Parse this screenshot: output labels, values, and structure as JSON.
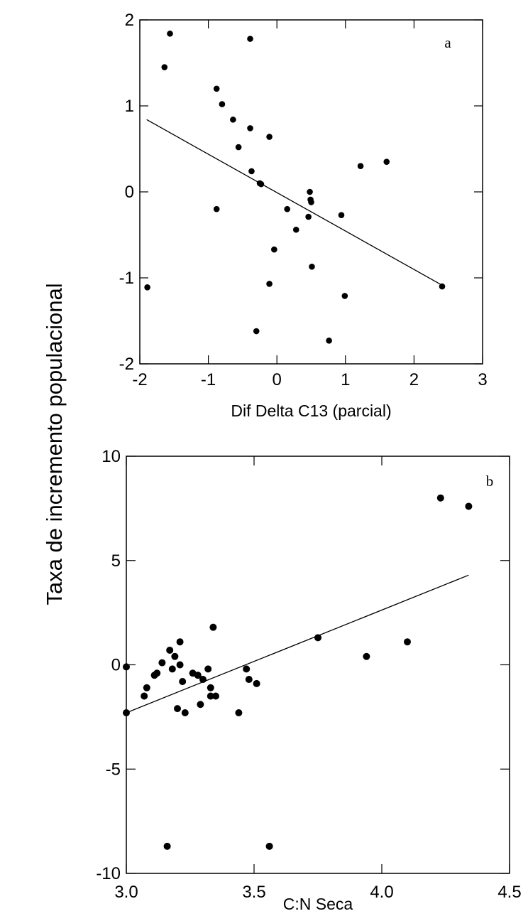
{
  "figure": {
    "ylabel": "Taxa de incremento  populacional"
  },
  "chart_data": [
    {
      "type": "scatter",
      "panel_label": "a",
      "xlabel": "Dif Delta C13 (parcial)",
      "ylabel": "Taxa de incremento  populacional",
      "xlim": [
        -2,
        3
      ],
      "ylim": [
        -2,
        2
      ],
      "xticks": [
        -2,
        -1,
        0,
        1,
        2,
        3
      ],
      "yticks": [
        -2,
        -1,
        0,
        1,
        2
      ],
      "xtick_labels": [
        "-2",
        "-1",
        "0",
        "1",
        "2",
        "3"
      ],
      "ytick_labels": [
        "-2",
        "-1",
        "0",
        "1",
        "2"
      ],
      "grid": false,
      "points": [
        [
          -1.56,
          1.84
        ],
        [
          -1.64,
          1.45
        ],
        [
          -0.39,
          1.78
        ],
        [
          -0.88,
          1.2
        ],
        [
          -0.8,
          1.02
        ],
        [
          -0.64,
          0.84
        ],
        [
          -0.39,
          0.74
        ],
        [
          -0.11,
          0.64
        ],
        [
          -0.56,
          0.52
        ],
        [
          -0.37,
          0.24
        ],
        [
          -0.25,
          0.1
        ],
        [
          -0.23,
          0.09
        ],
        [
          0.48,
          0.0
        ],
        [
          0.49,
          -0.09
        ],
        [
          0.5,
          -0.12
        ],
        [
          -0.88,
          -0.2
        ],
        [
          0.15,
          -0.2
        ],
        [
          0.46,
          -0.29
        ],
        [
          0.94,
          -0.27
        ],
        [
          0.28,
          -0.44
        ],
        [
          -0.04,
          -0.67
        ],
        [
          0.51,
          -0.87
        ],
        [
          -0.11,
          -1.07
        ],
        [
          0.99,
          -1.21
        ],
        [
          -1.89,
          -1.11
        ],
        [
          -0.3,
          -1.62
        ],
        [
          0.76,
          -1.73
        ],
        [
          1.22,
          0.3
        ],
        [
          1.6,
          0.35
        ],
        [
          2.41,
          -1.1
        ]
      ],
      "fit_line": {
        "x": [
          -1.9,
          2.42
        ],
        "y": [
          0.84,
          -1.09
        ]
      }
    },
    {
      "type": "scatter",
      "panel_label": "b",
      "xlabel": "C:N Seca",
      "ylabel": "Taxa de incremento  populacional",
      "xlim": [
        3.0,
        4.5
      ],
      "ylim": [
        -10,
        10
      ],
      "xticks": [
        3.0,
        3.5,
        4.0,
        4.5
      ],
      "yticks": [
        -10,
        -5,
        0,
        5,
        10
      ],
      "xtick_labels": [
        "3.0",
        "3.5",
        "4.0",
        "4.5"
      ],
      "ytick_labels": [
        "-10",
        "-5",
        "0",
        "5",
        "10"
      ],
      "grid": false,
      "points": [
        [
          3.0,
          -0.1
        ],
        [
          3.0,
          -2.3
        ],
        [
          3.07,
          -1.5
        ],
        [
          3.08,
          -1.1
        ],
        [
          3.11,
          -0.5
        ],
        [
          3.12,
          -0.4
        ],
        [
          3.14,
          0.1
        ],
        [
          3.17,
          0.7
        ],
        [
          3.18,
          -0.2
        ],
        [
          3.19,
          0.4
        ],
        [
          3.2,
          -2.1
        ],
        [
          3.21,
          1.1
        ],
        [
          3.21,
          0.0
        ],
        [
          3.22,
          -0.8
        ],
        [
          3.23,
          -2.3
        ],
        [
          3.26,
          -0.4
        ],
        [
          3.28,
          -0.5
        ],
        [
          3.29,
          -1.9
        ],
        [
          3.3,
          -0.7
        ],
        [
          3.32,
          -0.2
        ],
        [
          3.33,
          -1.1
        ],
        [
          3.33,
          -1.5
        ],
        [
          3.34,
          1.8
        ],
        [
          3.35,
          -1.5
        ],
        [
          3.44,
          -2.3
        ],
        [
          3.47,
          -0.2
        ],
        [
          3.48,
          -0.7
        ],
        [
          3.51,
          -0.9
        ],
        [
          3.75,
          1.3
        ],
        [
          3.94,
          0.4
        ],
        [
          4.1,
          1.1
        ],
        [
          4.23,
          8.0
        ],
        [
          4.34,
          7.6
        ],
        [
          3.16,
          -8.7
        ],
        [
          3.56,
          -8.7
        ]
      ],
      "fit_line": {
        "x": [
          3.0,
          4.34
        ],
        "y": [
          -2.3,
          4.3
        ]
      }
    }
  ]
}
